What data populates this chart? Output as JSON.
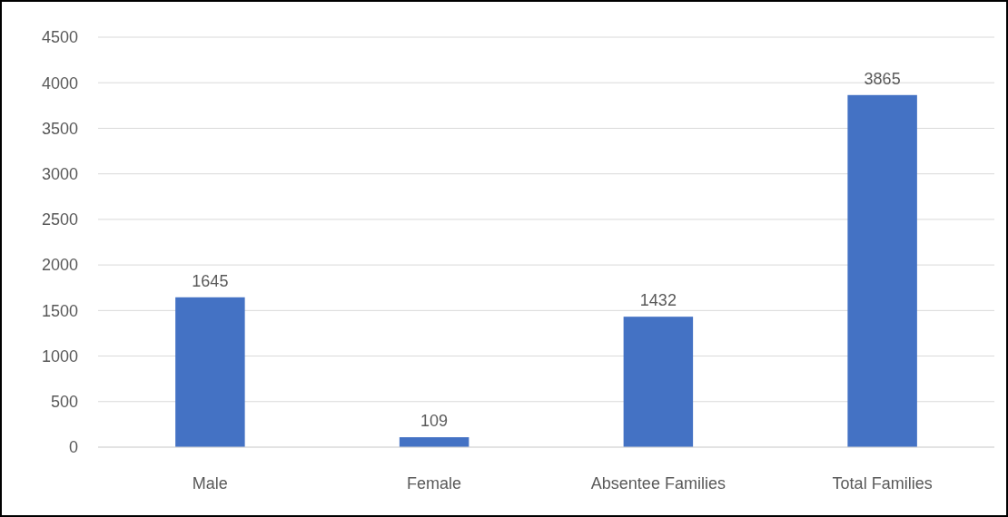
{
  "chart_data": {
    "type": "bar",
    "categories": [
      "Male",
      "Female",
      "Absentee Families",
      "Total Families"
    ],
    "values": [
      1645,
      109,
      1432,
      3865
    ],
    "color": "#4472c4",
    "ylim": [
      0,
      4500
    ],
    "yticks": [
      0,
      500,
      1000,
      1500,
      2000,
      2500,
      3000,
      3500,
      4000,
      4500
    ],
    "grid": "y",
    "data_labels": true
  }
}
